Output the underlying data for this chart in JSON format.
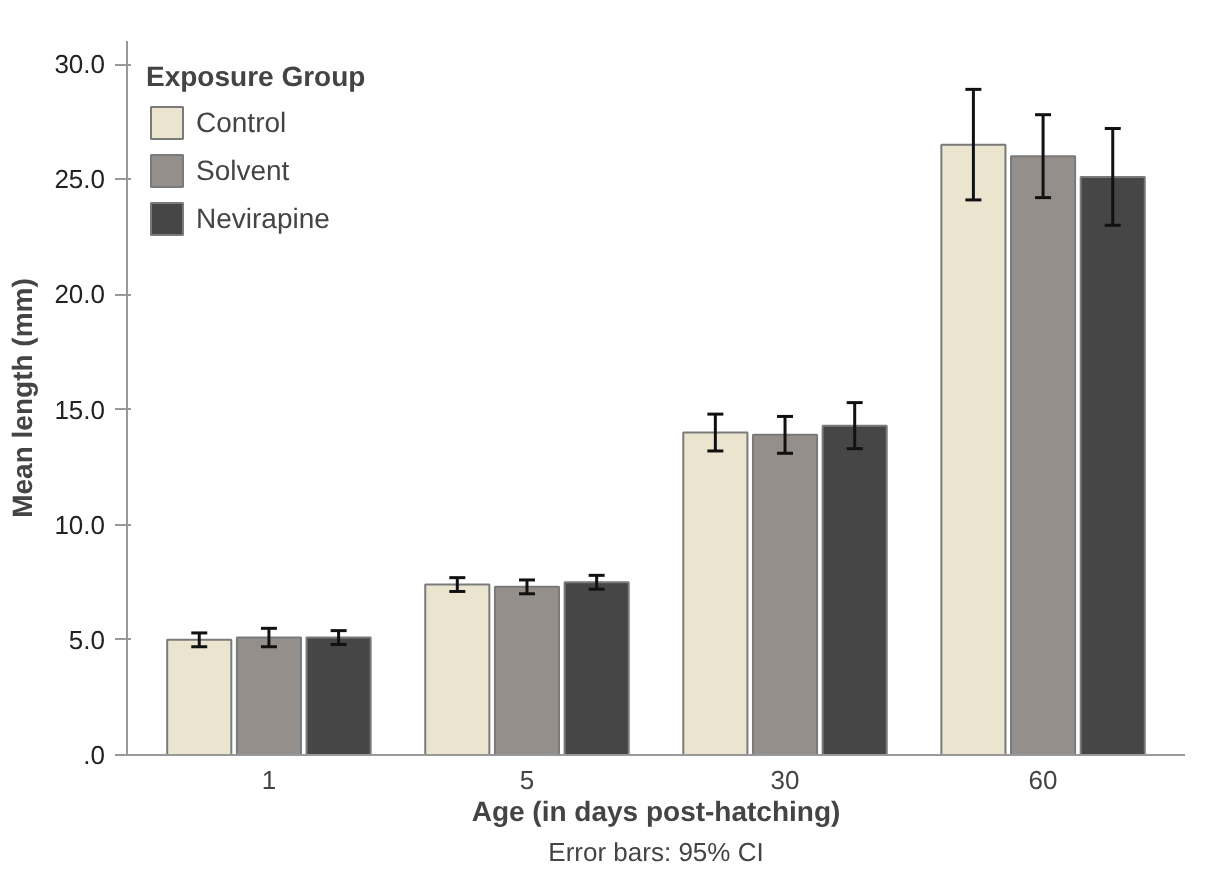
{
  "chart_data": {
    "type": "bar",
    "xlabel": "Age (in days post-hatching)",
    "ylabel": "Mean length (mm)",
    "legend_title": "Exposure Group",
    "annotations": [
      "Error bars: 95% CI"
    ],
    "categories": [
      "1",
      "5",
      "30",
      "60"
    ],
    "series": [
      {
        "name": "Control",
        "color": "#ebe5d0",
        "values": [
          5.0,
          7.4,
          14.0,
          26.5
        ],
        "errors": [
          0.3,
          0.3,
          0.8,
          2.4
        ]
      },
      {
        "name": "Solvent",
        "color": "#958f8c",
        "values": [
          5.1,
          7.3,
          13.9,
          26.0
        ],
        "errors": [
          0.4,
          0.3,
          0.8,
          1.8
        ]
      },
      {
        "name": "Nevirapine",
        "color": "#464646",
        "values": [
          5.1,
          7.5,
          14.3,
          25.1
        ],
        "errors": [
          0.3,
          0.3,
          1.0,
          2.1
        ]
      }
    ],
    "ylim": [
      0,
      31
    ],
    "yticks": [
      {
        "value": 0,
        "label": ".0"
      },
      {
        "value": 5,
        "label": "5.0"
      },
      {
        "value": 10,
        "label": "10.0"
      },
      {
        "value": 15,
        "label": "15.0"
      },
      {
        "value": 20,
        "label": "20.0"
      },
      {
        "value": 25,
        "label": "25.0"
      },
      {
        "value": 30,
        "label": "30.0"
      }
    ],
    "grid": false,
    "legend": "top left"
  }
}
